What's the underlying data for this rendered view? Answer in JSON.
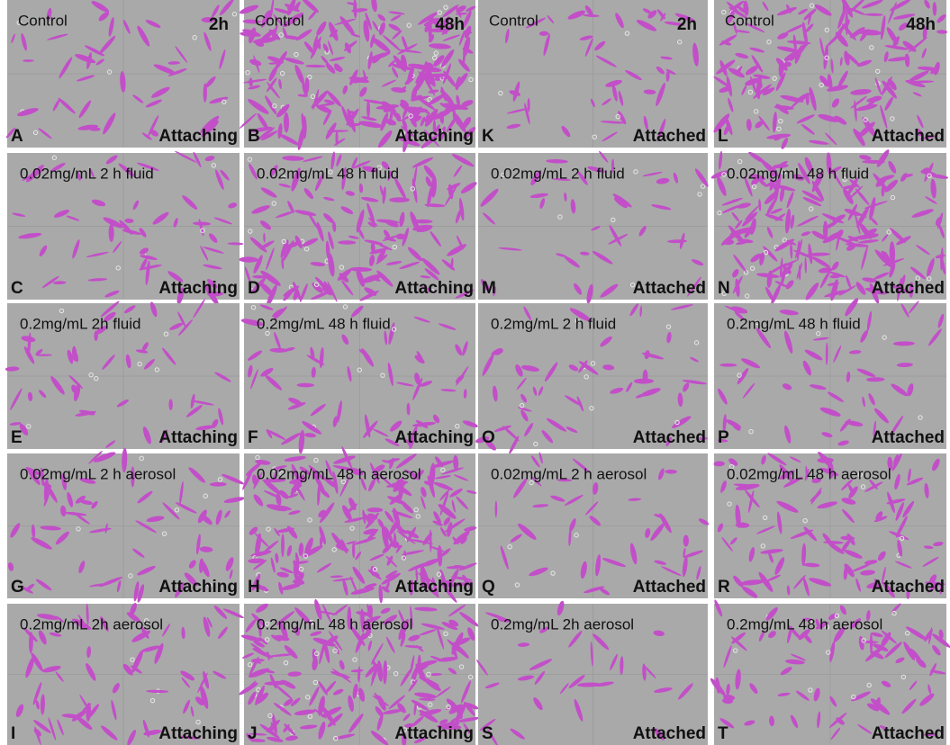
{
  "panels": [
    {
      "letter": "A",
      "label": "Control",
      "time": "2h",
      "status": "Attaching"
    },
    {
      "letter": "B",
      "label": "Control",
      "time": "48h",
      "status": "Attaching"
    },
    {
      "letter": "K",
      "label": "Control",
      "time": "2h",
      "status": "Attached"
    },
    {
      "letter": "L",
      "label": "Control",
      "time": "48h",
      "status": "Attached"
    },
    {
      "letter": "C",
      "label": "0.02mg/mL 2 h  fluid",
      "status": "Attaching"
    },
    {
      "letter": "D",
      "label": "0.02mg/mL  48 h fluid",
      "status": "Attaching"
    },
    {
      "letter": "M",
      "label": "0.02mg/mL  2 h fluid",
      "status": "Attached"
    },
    {
      "letter": "N",
      "label": "0.02mg/mL 48 h fluid",
      "status": "Attached"
    },
    {
      "letter": "E",
      "label": "0.2mg/mL  2h fluid",
      "status": "Attaching"
    },
    {
      "letter": "F",
      "label": "0.2mg/mL  48 h fluid",
      "status": "Attaching"
    },
    {
      "letter": "O",
      "label": "0.2mg/mL  2 h fluid",
      "status": "Attached"
    },
    {
      "letter": "P",
      "label": "0.2mg/mL 48 h fluid",
      "status": "Attached"
    },
    {
      "letter": "G",
      "label": "0.02mg/mL  2 h aerosol",
      "status": "Attaching"
    },
    {
      "letter": "H",
      "label": "0.02mg/mL 48 h aerosol",
      "status": "Attaching"
    },
    {
      "letter": "Q",
      "label": "0.02mg/mL  2 h aerosol",
      "status": "Attached"
    },
    {
      "letter": "R",
      "label": "0.02mg/mL 48 h aerosol",
      "status": "Attached"
    },
    {
      "letter": "I",
      "label": "0.2mg/mL 2h  aerosol",
      "status": "Attaching"
    },
    {
      "letter": "J",
      "label": "0.2mg/mL  48 h aerosol",
      "status": "Attaching"
    },
    {
      "letter": "S",
      "label": "0.2mg/mL 2h aerosol",
      "status": "Attached"
    },
    {
      "letter": "T",
      "label": "0.2mg/mL 48 h aerosol",
      "status": "Attached"
    }
  ]
}
